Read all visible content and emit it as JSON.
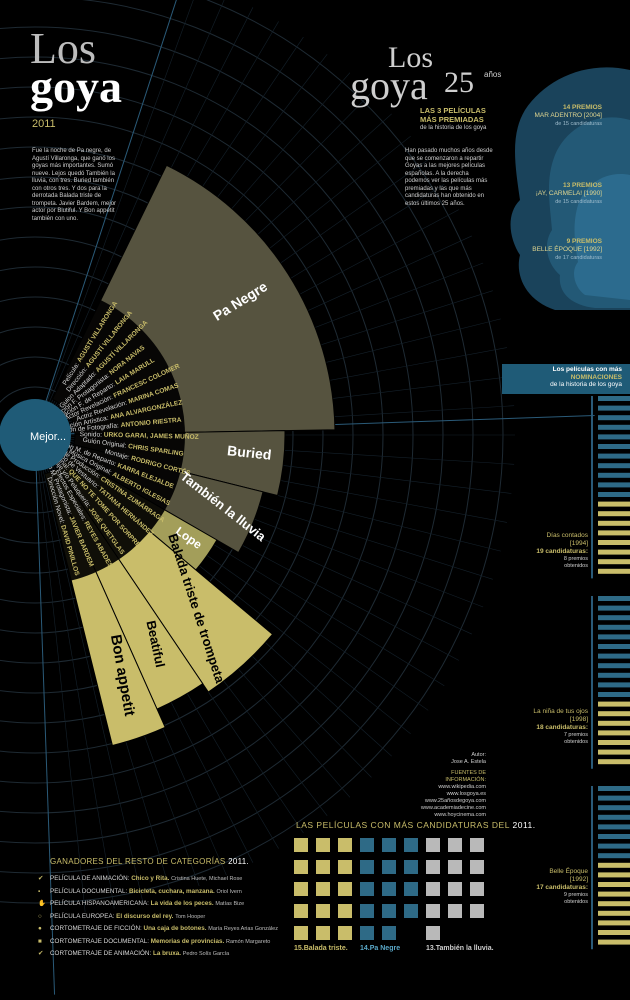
{
  "header": {
    "title_line1": "Los",
    "title_line2": "goya",
    "year": "2011",
    "intro": "Fue la noche de Pa negre, de Agustí Villaronga, que ganó los goyas más importantes. Sumó nueve. Lejos quedó También la lluvia, con tres. Buried también con otros tres. Y dos para la derrotada Balada triste de trompeta. Javier Bardem, mejor actor por Biutiful. Y Bon appétit también con uno."
  },
  "center_label": "Mejor...",
  "categories": [
    {
      "category": "Película:",
      "winner": "AGUSTÍ VILLARONGA"
    },
    {
      "category": "Dirección:",
      "winner": "AGUSTÍ VILLARONGA"
    },
    {
      "category": "Guion Adaptado:",
      "winner": "AGUSTÍ VILLARONGA"
    },
    {
      "category": "Interpretación F. Protagonista:",
      "winner": "NORA NAVAS"
    },
    {
      "category": "Interpretación F. de Reparto:",
      "winner": "LAIA MARULL"
    },
    {
      "category": "Actor Revelación:",
      "winner": "FRANCESC COLOMER"
    },
    {
      "category": "Actriz Revelación:",
      "winner": "MARINA COMAS"
    },
    {
      "category": "Dirección Artística:",
      "winner": "ANA ALVARGONZÁLEZ"
    },
    {
      "category": "Dirección de Fotografía:",
      "winner": "ANTONIO RIESTRA"
    },
    {
      "category": "Sonido:",
      "winner": "URKO GARAI, JAMES MUÑOZ"
    },
    {
      "category": "Guión Original:",
      "winner": "CHRIS SPARLING"
    },
    {
      "category": "Montaje:",
      "winner": "RODRIGO CORTÉS"
    },
    {
      "category": "Interpretación M. de Reparto:",
      "winner": "KARRA ELEJALDE"
    },
    {
      "category": "Música Original:",
      "winner": "ALBERTO IGLESIAS"
    },
    {
      "category": "Dirección de Producción:",
      "winner": "CRISTINA ZUMÁRRAGA"
    },
    {
      "category": "Diseño de Vestuario:",
      "winner": "TATIANA HERNÁNDEZ"
    },
    {
      "category": "Canción Original:",
      "winner": "QUE NO TE TOME POR SORPRESA"
    },
    {
      "category": "Maquillaje y/o Peluquería:",
      "winner": "JOSÉ QUETGLAS"
    },
    {
      "category": "Efectos Especiales:",
      "winner": "REYES ABADES"
    },
    {
      "category": "Interpretación M. Protagonista:",
      "winner": "JAVIER BARDEM"
    },
    {
      "category": "Dirección Novel:",
      "winner": "DAVID PINILLOS"
    }
  ],
  "films": [
    "Pa Negre",
    "Buried",
    "También la lluvia",
    "Lope",
    "Balada triste de trompeta",
    "Beatiful",
    "Bon appetit"
  ],
  "anniversary": {
    "title1": "Los",
    "title2": "goya",
    "number": "25",
    "unit": "años",
    "subtitle_line1": "LAS 3 PELÍCULAS",
    "subtitle_line2": "MÁS PREMIADAS",
    "subtitle_line3": "de la historia de los goya",
    "body": "Han pasado muchos años desde que se comenzaron a repartir Goyas a las mejores películas españolas. A la derecha podemos ver las películas más premiadas y las que más candidaturas han obtenido en estos últimos 25 años."
  },
  "top_films": [
    {
      "premios": "14 PREMIOS",
      "film": "MAR ADENTRO",
      "year": "[2004]",
      "candidaturas": "de 15 candidaturas"
    },
    {
      "premios": "13 PREMIOS",
      "film": "¡AY, CARMELA!",
      "year": "[1990]",
      "candidaturas": "de 15 candidaturas"
    },
    {
      "premios": "9 PREMIOS",
      "film": "BELLE ÉPOQUE",
      "year": "[1992]",
      "candidaturas": "de 17 candidaturas"
    }
  ],
  "nominations": {
    "title_line1": "Los películas con más",
    "title_line2": "NOMINACIONES",
    "title_line3": "de la historia de los goya",
    "films": [
      {
        "film": "Días contados",
        "year": "[1994]",
        "cand": "19 candidaturas:",
        "prem1": "8 premios",
        "prem2": "obtenidos"
      },
      {
        "film": "La niña de tus ojos",
        "year": "[1998]",
        "cand": "18 candidaturas:",
        "prem1": "7 premios",
        "prem2": "obtenidos"
      },
      {
        "film": "Belle Époque",
        "year": "[1992]",
        "cand": "17 candidaturas:",
        "prem1": "9 premios",
        "prem2": "obtenidos"
      }
    ]
  },
  "credits": {
    "author_label": "Autor:",
    "author": "Jose A. Estela",
    "sources_label": "FUENTES DE INFORMACIÓN:",
    "sources": [
      "www.wikipedia.com",
      "www.losgoya.es",
      "www.25añosdegoya.com",
      "www.academiadecine.com",
      "www.hoycinema.com"
    ]
  },
  "candidaturas": {
    "title_main": "LAS PELÍCULAS CON MÁS CANDIDATURAS DEL",
    "title_year": "2011.",
    "labels": [
      {
        "num": "15.",
        "name": "Balada triste."
      },
      {
        "num": "14.",
        "name": "Pa Negre"
      },
      {
        "num": "13.",
        "name": "También la lluvia."
      }
    ],
    "counts": [
      15,
      14,
      13
    ],
    "colors": [
      "#c9bd6a",
      "#2e6a86",
      "#b9b9b9"
    ]
  },
  "resto": {
    "title": "GANADORES DEL RESTO DE CATEGORÍAS",
    "year": "2011.",
    "rows": [
      {
        "cat": "PELÍCULA DE ANIMACIÓN:",
        "win": "Chico y Rita.",
        "who": "Cristina Huete, Michael Rose"
      },
      {
        "cat": "PELÍCULA DOCUMENTAL:",
        "win": "Bicicleta, cuchara, manzana.",
        "who": "Oriol Ivern"
      },
      {
        "cat": "PELÍCULA HISPANOAMERICANA:",
        "win": "La vida de los peces.",
        "who": "Matías Bize"
      },
      {
        "cat": "PELÍCULA EUROPEA:",
        "win": "El discurso del rey.",
        "who": "Tom Hooper"
      },
      {
        "cat": "CORTOMETRAJE DE FICCIÓN:",
        "win": "Una caja de botones.",
        "who": "María Reyes Arias González"
      },
      {
        "cat": "CORTOMETRAJE DOCUMENTAL:",
        "win": "Memorias de provincias.",
        "who": "Ramón Margareto"
      },
      {
        "cat": "CORTOMETRAJE DE ANIMACIÓN:",
        "win": "La bruxa.",
        "who": "Pedro Solís García"
      }
    ]
  },
  "colors": {
    "gold": "#c9bd6a",
    "olive": "#56533f",
    "olive_light": "#a39e5a",
    "blue": "#2e6a86",
    "lightblue": "#5aa8c8",
    "grey": "#b9b9b9"
  }
}
